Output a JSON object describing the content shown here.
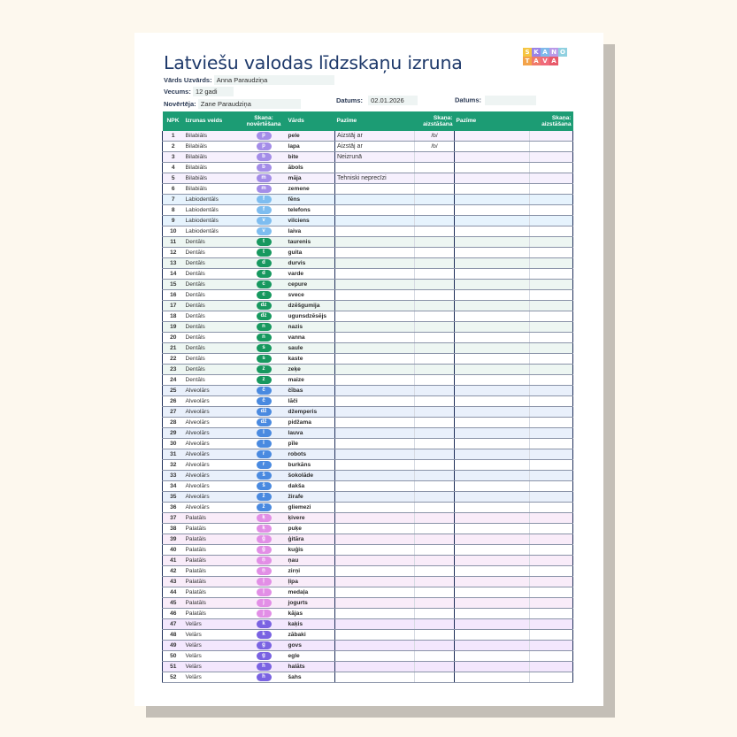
{
  "document": {
    "title": "Latviešu valodas līdzskaņu izruna",
    "logo": {
      "row1": [
        {
          "ch": "S",
          "color": "#f5c542"
        },
        {
          "ch": "K",
          "color": "#9a84e6"
        },
        {
          "ch": "A",
          "color": "#7fb9ea"
        },
        {
          "ch": "N",
          "color": "#b99be8"
        },
        {
          "ch": "O",
          "color": "#8fd0e0"
        }
      ],
      "row2": [
        {
          "ch": "T",
          "color": "#f3a34a"
        },
        {
          "ch": "A",
          "color": "#f07b6b"
        },
        {
          "ch": "V",
          "color": "#f06b7b"
        },
        {
          "ch": "A",
          "color": "#e85a6a"
        }
      ]
    },
    "fields": {
      "name_label": "Vārds Uzvārds:",
      "name_value": "Anna Paraudziņa",
      "age_label": "Vecums:",
      "age_value": "12 gadi",
      "assessor_label": "Novērtēja:",
      "assessor_value": "Zane Paraudziņa",
      "date1_label": "Datums:",
      "date1_value": "02.01.2026",
      "date2_label": "Datums:",
      "date2_value": ""
    },
    "table": {
      "headers": {
        "npk": "NPK",
        "type": "Izrunas veids",
        "sound_eval": "Skaņa: novērtēšana",
        "word": "Vārds",
        "trait1": "Pazīme",
        "sound_sub1": "Skaņa: aizstāšana",
        "trait2": "Pazīme",
        "sound_sub2": "Skaņa: aizstāšana"
      },
      "group_colors": {
        "Bilabiāls": {
          "pill": "#a48de8",
          "row": "#f6f0fd"
        },
        "Labiodentāls": {
          "pill": "#7ebdf0",
          "row": "#e6f3fd"
        },
        "Dentāls": {
          "pill": "#17985f",
          "row": "#edf6f2"
        },
        "Alveolārs": {
          "pill": "#4a8ae0",
          "row": "#e9f0fb"
        },
        "Palatāls": {
          "pill": "#e28fe6",
          "row": "#f9ecf9"
        },
        "Velārs": {
          "pill": "#7a63e2",
          "row": "#f3e7fd"
        }
      },
      "rows": [
        {
          "n": "1",
          "type": "Bilabiāls",
          "sound": "p",
          "word": "pele",
          "trait1": "Aizstāj ar",
          "sub1": "/b/",
          "trait2": "",
          "sub2": ""
        },
        {
          "n": "2",
          "type": "Bilabiāls",
          "sound": "p",
          "word": "lapa",
          "trait1": "Aizstāj ar",
          "sub1": "/b/",
          "trait2": "",
          "sub2": ""
        },
        {
          "n": "3",
          "type": "Bilabiāls",
          "sound": "b",
          "word": "bite",
          "trait1": "Neizrunā",
          "sub1": "",
          "trait2": "",
          "sub2": ""
        },
        {
          "n": "4",
          "type": "Bilabiāls",
          "sound": "b",
          "word": "ābols",
          "trait1": "",
          "sub1": "",
          "trait2": "",
          "sub2": ""
        },
        {
          "n": "5",
          "type": "Bilabiāls",
          "sound": "m",
          "word": "māja",
          "trait1": "Tehniski neprecīzi",
          "sub1": "",
          "trait2": "",
          "sub2": ""
        },
        {
          "n": "6",
          "type": "Bilabiāls",
          "sound": "m",
          "word": "zemene",
          "trait1": "",
          "sub1": "",
          "trait2": "",
          "sub2": ""
        },
        {
          "n": "7",
          "type": "Labiodentāls",
          "sound": "f",
          "word": "fēns",
          "trait1": "",
          "sub1": "",
          "trait2": "",
          "sub2": ""
        },
        {
          "n": "8",
          "type": "Labiodentāls",
          "sound": "f",
          "word": "telefons",
          "trait1": "",
          "sub1": "",
          "trait2": "",
          "sub2": ""
        },
        {
          "n": "9",
          "type": "Labiodentāls",
          "sound": "v",
          "word": "vilciens",
          "trait1": "",
          "sub1": "",
          "trait2": "",
          "sub2": ""
        },
        {
          "n": "10",
          "type": "Labiodentāls",
          "sound": "v",
          "word": "laiva",
          "trait1": "",
          "sub1": "",
          "trait2": "",
          "sub2": ""
        },
        {
          "n": "11",
          "type": "Dentāls",
          "sound": "t",
          "word": "taurenis",
          "trait1": "",
          "sub1": "",
          "trait2": "",
          "sub2": ""
        },
        {
          "n": "12",
          "type": "Dentāls",
          "sound": "t",
          "word": "guita",
          "trait1": "",
          "sub1": "",
          "trait2": "",
          "sub2": ""
        },
        {
          "n": "13",
          "type": "Dentāls",
          "sound": "d",
          "word": "durvis",
          "trait1": "",
          "sub1": "",
          "trait2": "",
          "sub2": ""
        },
        {
          "n": "14",
          "type": "Dentāls",
          "sound": "d",
          "word": "varde",
          "trait1": "",
          "sub1": "",
          "trait2": "",
          "sub2": ""
        },
        {
          "n": "15",
          "type": "Dentāls",
          "sound": "c",
          "word": "cepure",
          "trait1": "",
          "sub1": "",
          "trait2": "",
          "sub2": ""
        },
        {
          "n": "16",
          "type": "Dentāls",
          "sound": "c",
          "word": "svece",
          "trait1": "",
          "sub1": "",
          "trait2": "",
          "sub2": ""
        },
        {
          "n": "17",
          "type": "Dentāls",
          "sound": "dz",
          "word": "dzēšgumija",
          "trait1": "",
          "sub1": "",
          "trait2": "",
          "sub2": ""
        },
        {
          "n": "18",
          "type": "Dentāls",
          "sound": "dz",
          "word": "ugunsdzēsējs",
          "trait1": "",
          "sub1": "",
          "trait2": "",
          "sub2": ""
        },
        {
          "n": "19",
          "type": "Dentāls",
          "sound": "n",
          "word": "nazis",
          "trait1": "",
          "sub1": "",
          "trait2": "",
          "sub2": ""
        },
        {
          "n": "20",
          "type": "Dentāls",
          "sound": "n",
          "word": "vanna",
          "trait1": "",
          "sub1": "",
          "trait2": "",
          "sub2": ""
        },
        {
          "n": "21",
          "type": "Dentāls",
          "sound": "s",
          "word": "saule",
          "trait1": "",
          "sub1": "",
          "trait2": "",
          "sub2": ""
        },
        {
          "n": "22",
          "type": "Dentāls",
          "sound": "s",
          "word": "kaste",
          "trait1": "",
          "sub1": "",
          "trait2": "",
          "sub2": ""
        },
        {
          "n": "23",
          "type": "Dentāls",
          "sound": "z",
          "word": "zeķe",
          "trait1": "",
          "sub1": "",
          "trait2": "",
          "sub2": ""
        },
        {
          "n": "24",
          "type": "Dentāls",
          "sound": "z",
          "word": "maize",
          "trait1": "",
          "sub1": "",
          "trait2": "",
          "sub2": ""
        },
        {
          "n": "25",
          "type": "Alveolārs",
          "sound": "č",
          "word": "čības",
          "trait1": "",
          "sub1": "",
          "trait2": "",
          "sub2": ""
        },
        {
          "n": "26",
          "type": "Alveolārs",
          "sound": "č",
          "word": "lāči",
          "trait1": "",
          "sub1": "",
          "trait2": "",
          "sub2": ""
        },
        {
          "n": "27",
          "type": "Alveolārs",
          "sound": "dž",
          "word": "džemperis",
          "trait1": "",
          "sub1": "",
          "trait2": "",
          "sub2": ""
        },
        {
          "n": "28",
          "type": "Alveolārs",
          "sound": "dž",
          "word": "pidžama",
          "trait1": "",
          "sub1": "",
          "trait2": "",
          "sub2": ""
        },
        {
          "n": "29",
          "type": "Alveolārs",
          "sound": "l",
          "word": "lauva",
          "trait1": "",
          "sub1": "",
          "trait2": "",
          "sub2": ""
        },
        {
          "n": "30",
          "type": "Alveolārs",
          "sound": "l",
          "word": "pīle",
          "trait1": "",
          "sub1": "",
          "trait2": "",
          "sub2": ""
        },
        {
          "n": "31",
          "type": "Alveolārs",
          "sound": "r",
          "word": "robots",
          "trait1": "",
          "sub1": "",
          "trait2": "",
          "sub2": ""
        },
        {
          "n": "32",
          "type": "Alveolārs",
          "sound": "r",
          "word": "burkāns",
          "trait1": "",
          "sub1": "",
          "trait2": "",
          "sub2": ""
        },
        {
          "n": "33",
          "type": "Alveolārs",
          "sound": "š",
          "word": "šokolāde",
          "trait1": "",
          "sub1": "",
          "trait2": "",
          "sub2": ""
        },
        {
          "n": "34",
          "type": "Alveolārs",
          "sound": "š",
          "word": "dakša",
          "trait1": "",
          "sub1": "",
          "trait2": "",
          "sub2": ""
        },
        {
          "n": "35",
          "type": "Alveolārs",
          "sound": "ž",
          "word": "žirafe",
          "trait1": "",
          "sub1": "",
          "trait2": "",
          "sub2": ""
        },
        {
          "n": "36",
          "type": "Alveolārs",
          "sound": "ž",
          "word": "gliemezi",
          "trait1": "",
          "sub1": "",
          "trait2": "",
          "sub2": ""
        },
        {
          "n": "37",
          "type": "Palatāls",
          "sound": "ķ",
          "word": "ķivere",
          "trait1": "",
          "sub1": "",
          "trait2": "",
          "sub2": ""
        },
        {
          "n": "38",
          "type": "Palatāls",
          "sound": "ķ",
          "word": "puķe",
          "trait1": "",
          "sub1": "",
          "trait2": "",
          "sub2": ""
        },
        {
          "n": "39",
          "type": "Palatāls",
          "sound": "ģ",
          "word": "ģitāra",
          "trait1": "",
          "sub1": "",
          "trait2": "",
          "sub2": ""
        },
        {
          "n": "40",
          "type": "Palatāls",
          "sound": "ģ",
          "word": "kuģis",
          "trait1": "",
          "sub1": "",
          "trait2": "",
          "sub2": ""
        },
        {
          "n": "41",
          "type": "Palatāls",
          "sound": "ņ",
          "word": "ņau",
          "trait1": "",
          "sub1": "",
          "trait2": "",
          "sub2": ""
        },
        {
          "n": "42",
          "type": "Palatāls",
          "sound": "ņ",
          "word": "zirņi",
          "trait1": "",
          "sub1": "",
          "trait2": "",
          "sub2": ""
        },
        {
          "n": "43",
          "type": "Palatāls",
          "sound": "ļ",
          "word": "ļipa",
          "trait1": "",
          "sub1": "",
          "trait2": "",
          "sub2": ""
        },
        {
          "n": "44",
          "type": "Palatāls",
          "sound": "ļ",
          "word": "medaļa",
          "trait1": "",
          "sub1": "",
          "trait2": "",
          "sub2": ""
        },
        {
          "n": "45",
          "type": "Palatāls",
          "sound": "j",
          "word": "jogurts",
          "trait1": "",
          "sub1": "",
          "trait2": "",
          "sub2": ""
        },
        {
          "n": "46",
          "type": "Palatāls",
          "sound": "j",
          "word": "kājas",
          "trait1": "",
          "sub1": "",
          "trait2": "",
          "sub2": ""
        },
        {
          "n": "47",
          "type": "Velārs",
          "sound": "k",
          "word": "kaķis",
          "trait1": "",
          "sub1": "",
          "trait2": "",
          "sub2": ""
        },
        {
          "n": "48",
          "type": "Velārs",
          "sound": "k",
          "word": "zābaki",
          "trait1": "",
          "sub1": "",
          "trait2": "",
          "sub2": ""
        },
        {
          "n": "49",
          "type": "Velārs",
          "sound": "g",
          "word": "govs",
          "trait1": "",
          "sub1": "",
          "trait2": "",
          "sub2": ""
        },
        {
          "n": "50",
          "type": "Velārs",
          "sound": "g",
          "word": "egle",
          "trait1": "",
          "sub1": "",
          "trait2": "",
          "sub2": ""
        },
        {
          "n": "51",
          "type": "Velārs",
          "sound": "h",
          "word": "halāts",
          "trait1": "",
          "sub1": "",
          "trait2": "",
          "sub2": ""
        },
        {
          "n": "52",
          "type": "Velārs",
          "sound": "h",
          "word": "šahs",
          "trait1": "",
          "sub1": "",
          "trait2": "",
          "sub2": ""
        }
      ]
    }
  }
}
